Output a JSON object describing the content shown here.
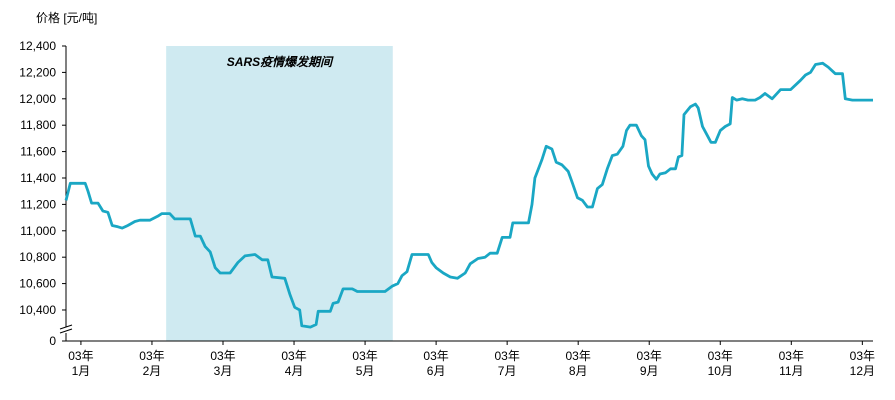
{
  "chart_data": {
    "type": "line",
    "y_axis_label": "价格 [元/吨]",
    "color": "#1aa7c4",
    "shaded_region": {
      "x": [
        2.2,
        5.39
      ],
      "label": "SARS疫情爆发期间",
      "color": "#cfeaf1",
      "label_color": "#1ba3c6"
    },
    "x": [
      0.79,
      0.85,
      1.06,
      1.1,
      1.15,
      1.24,
      1.31,
      1.38,
      1.44,
      1.52,
      1.58,
      1.66,
      1.76,
      1.83,
      1.97,
      2.08,
      2.14,
      2.25,
      2.32,
      2.54,
      2.61,
      2.68,
      2.75,
      2.82,
      2.89,
      2.96,
      3.1,
      3.21,
      3.31,
      3.45,
      3.55,
      3.63,
      3.69,
      3.87,
      3.94,
      4.01,
      4.08,
      4.11,
      4.23,
      4.31,
      4.34,
      4.51,
      4.55,
      4.62,
      4.69,
      4.82,
      4.89,
      5.28,
      5.38,
      5.46,
      5.52,
      5.59,
      5.66,
      5.89,
      5.94,
      6.0,
      6.1,
      6.2,
      6.3,
      6.41,
      6.48,
      6.59,
      6.69,
      6.76,
      6.86,
      6.93,
      7.04,
      7.08,
      7.3,
      7.35,
      7.39,
      7.49,
      7.55,
      7.63,
      7.69,
      7.77,
      7.86,
      7.92,
      7.99,
      8.06,
      8.13,
      8.2,
      8.27,
      8.34,
      8.41,
      8.48,
      8.55,
      8.63,
      8.68,
      8.73,
      8.82,
      8.89,
      8.94,
      8.99,
      9.04,
      9.1,
      9.15,
      9.23,
      9.3,
      9.37,
      9.41,
      9.46,
      9.49,
      9.58,
      9.65,
      9.69,
      9.75,
      9.82,
      9.87,
      9.93,
      10.0,
      10.07,
      10.14,
      10.17,
      10.23,
      10.31,
      10.39,
      10.49,
      10.56,
      10.63,
      10.73,
      10.85,
      10.99,
      11.13,
      11.2,
      11.27,
      11.34,
      11.44,
      11.52,
      11.62,
      11.72,
      11.76,
      11.86,
      11.97,
      12.04,
      12.11,
      12.15
    ],
    "values": [
      11230,
      11360,
      11360,
      11300,
      11210,
      11210,
      11150,
      11140,
      11040,
      11030,
      11020,
      11040,
      11070,
      11080,
      11080,
      11110,
      11130,
      11130,
      11090,
      11090,
      10960,
      10960,
      10880,
      10840,
      10720,
      10680,
      10680,
      10760,
      10810,
      10820,
      10780,
      10780,
      10650,
      10640,
      10520,
      10420,
      10400,
      10280,
      10270,
      10290,
      10390,
      10390,
      10450,
      10460,
      10560,
      10560,
      10540,
      10540,
      10580,
      10600,
      10660,
      10690,
      10820,
      10820,
      10760,
      10720,
      10680,
      10650,
      10640,
      10680,
      10750,
      10790,
      10800,
      10830,
      10830,
      10950,
      10950,
      11060,
      11060,
      11200,
      11400,
      11540,
      11640,
      11620,
      11520,
      11500,
      11450,
      11360,
      11250,
      11230,
      11180,
      11180,
      11320,
      11350,
      11470,
      11570,
      11580,
      11640,
      11760,
      11800,
      11800,
      11720,
      11690,
      11490,
      11430,
      11390,
      11430,
      11440,
      11470,
      11470,
      11560,
      11570,
      11880,
      11940,
      11960,
      11930,
      11790,
      11720,
      11670,
      11670,
      11760,
      11790,
      11810,
      12010,
      11990,
      12000,
      11990,
      11990,
      12010,
      12040,
      12000,
      12070,
      12070,
      12140,
      12180,
      12200,
      12260,
      12270,
      12240,
      12190,
      12190,
      12000,
      11990,
      11990,
      11990,
      11990,
      11990
    ],
    "xlim": [
      0.79,
      12.15
    ],
    "xticks": [
      {
        "value": 1,
        "label": "03年\n1月"
      },
      {
        "value": 2,
        "label": "03年\n2月"
      },
      {
        "value": 3,
        "label": "03年\n3月"
      },
      {
        "value": 4,
        "label": "03年\n4月"
      },
      {
        "value": 5,
        "label": "03年\n5月"
      },
      {
        "value": 6,
        "label": "03年\n6月"
      },
      {
        "value": 7,
        "label": "03年\n7月"
      },
      {
        "value": 8,
        "label": "03年\n8月"
      },
      {
        "value": 9,
        "label": "03年\n9月"
      },
      {
        "value": 10,
        "label": "03年\n10月"
      },
      {
        "value": 11,
        "label": "03年\n11月"
      },
      {
        "value": 12,
        "label": "03年\n12月"
      }
    ],
    "ylim": [
      10165,
      12400
    ],
    "yticks": [
      0,
      {
        "value": 10400,
        "label": "10,400"
      },
      {
        "value": 10600,
        "label": "10,600"
      },
      {
        "value": 10800,
        "label": "10,800"
      },
      {
        "value": 11000,
        "label": "11,000"
      },
      {
        "value": 11200,
        "label": "11,200"
      },
      {
        "value": 11400,
        "label": "11,400"
      },
      {
        "value": 11600,
        "label": "11,600"
      },
      {
        "value": 11800,
        "label": "11,800"
      },
      {
        "value": 12000,
        "label": "12,000"
      },
      {
        "value": 12200,
        "label": "12,200"
      },
      {
        "value": 12400,
        "label": "12,400"
      }
    ],
    "axis_break": true
  }
}
